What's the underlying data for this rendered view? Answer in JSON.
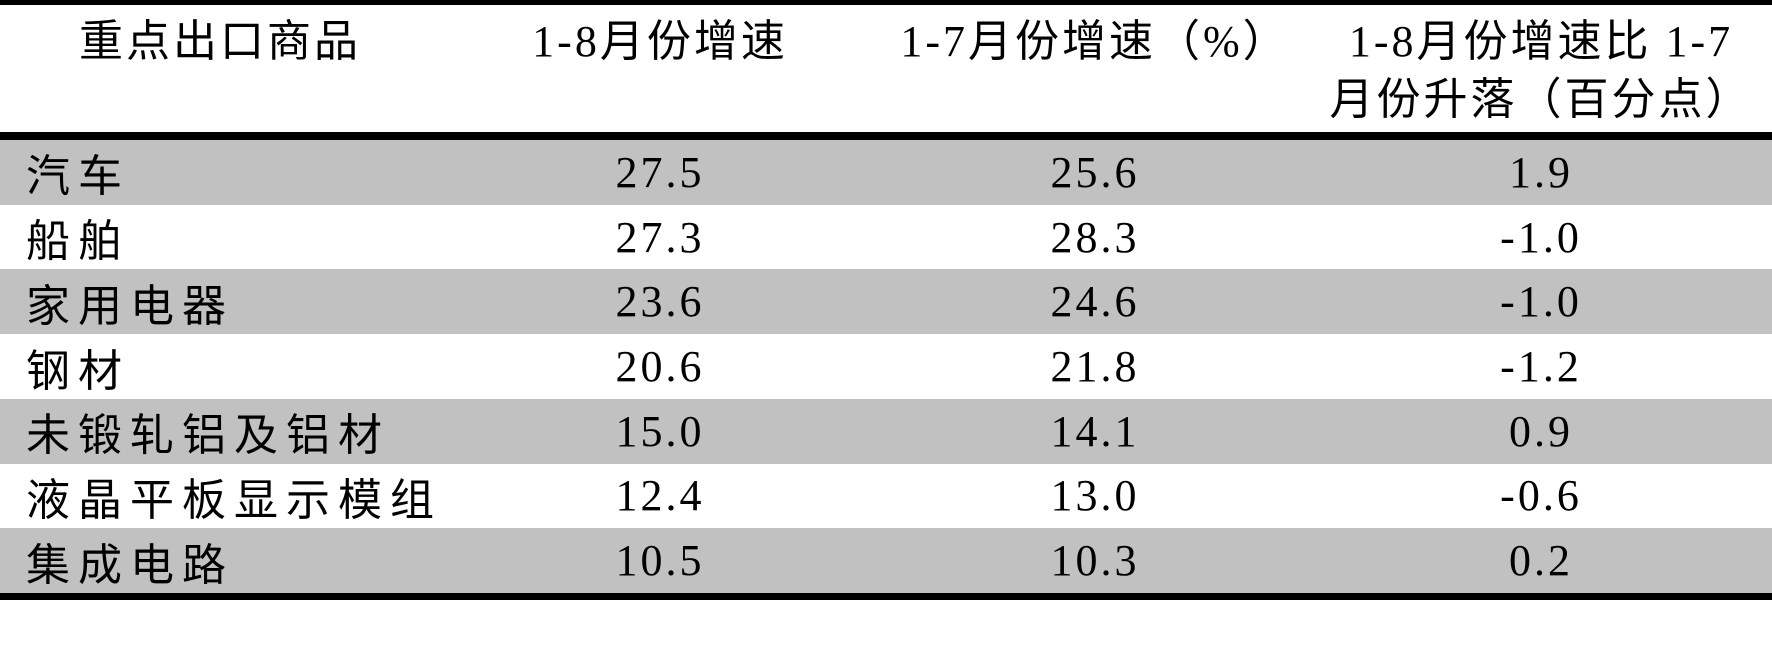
{
  "table": {
    "header": {
      "commodity": "重点出口商品",
      "aug_growth": "1-8月份增速",
      "jul_growth": "1-7月份增速（%）",
      "change_line1": "1-8月份增速比 1-7",
      "change_line2": "月份升落（百分点）"
    },
    "rows": [
      {
        "name": "汽车",
        "aug": "27.5",
        "jul": "25.6",
        "diff": "1.9"
      },
      {
        "name": "船舶",
        "aug": "27.3",
        "jul": "28.3",
        "diff": "-1.0"
      },
      {
        "name": "家用电器",
        "aug": "23.6",
        "jul": "24.6",
        "diff": "-1.0"
      },
      {
        "name": "钢材",
        "aug": "20.6",
        "jul": "21.8",
        "diff": "-1.2"
      },
      {
        "name": "未锻轧铝及铝材",
        "aug": "15.0",
        "jul": "14.1",
        "diff": "0.9"
      },
      {
        "name": "液晶平板显示模组",
        "aug": "12.4",
        "jul": "13.0",
        "diff": "-0.6"
      },
      {
        "name": "集成电路",
        "aug": "10.5",
        "jul": "10.3",
        "diff": "0.2"
      }
    ]
  },
  "colors": {
    "row_shade": "#c1c1c1",
    "rule": "#000000",
    "text": "#000000"
  },
  "chart_data": {
    "type": "table",
    "title": "",
    "columns": [
      "重点出口商品",
      "1-8月份增速",
      "1-7月份增速（%）",
      "1-8月份增速比 1-7 月份升落（百分点）"
    ],
    "rows": [
      [
        "汽车",
        27.5,
        25.6,
        1.9
      ],
      [
        "船舶",
        27.3,
        28.3,
        -1.0
      ],
      [
        "家用电器",
        23.6,
        24.6,
        -1.0
      ],
      [
        "钢材",
        20.6,
        21.8,
        -1.2
      ],
      [
        "未锻轧铝及铝材",
        15.0,
        14.1,
        0.9
      ],
      [
        "液晶平板显示模组",
        12.4,
        13.0,
        -0.6
      ],
      [
        "集成电路",
        10.5,
        10.3,
        0.2
      ]
    ]
  }
}
